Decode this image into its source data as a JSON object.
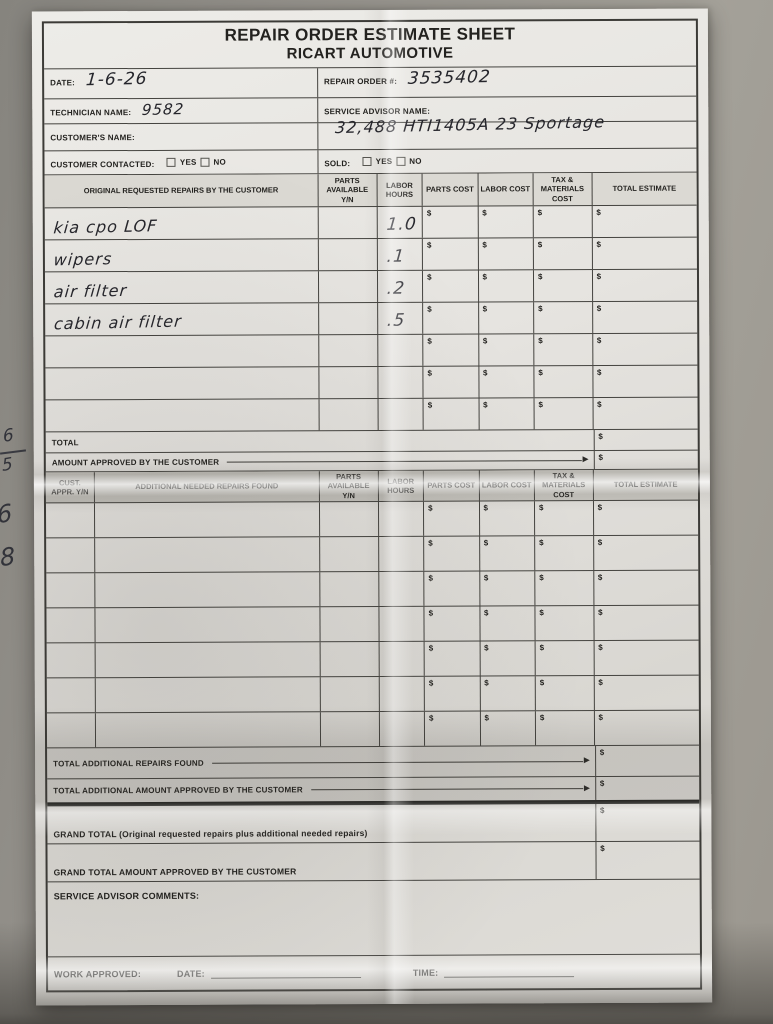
{
  "misc": {
    "dollar": "$"
  },
  "icons": {
    "arrow_right": "►"
  },
  "header": {
    "title_line1": "REPAIR ORDER ESTIMATE SHEET",
    "title_line2": "RICART AUTOMOTIVE"
  },
  "info": {
    "date_label": "DATE:",
    "date_value": "1-6-26",
    "repair_order_label": "REPAIR ORDER #:",
    "repair_order_value": "3535402",
    "technician_label": "TECHNICIAN NAME:",
    "technician_value": "9582",
    "service_advisor_label": "SERVICE ADVISOR NAME:",
    "customer_name_label": "CUSTOMER'S NAME:",
    "customer_note_value": "32,488  HTI1405A    23 Sportage",
    "customer_contacted_label": "CUSTOMER CONTACTED:",
    "sold_label": "SOLD:",
    "yes_label": "YES",
    "no_label": "NO"
  },
  "table1": {
    "headers": [
      "ORIGINAL REQUESTED REPAIRS BY THE CUSTOMER",
      "PARTS AVAILABLE Y/N",
      "LABOR HOURS",
      "PARTS COST",
      "LABOR COST",
      "TAX & MATERIALS COST",
      "TOTAL ESTIMATE"
    ],
    "rows": [
      {
        "repair": "kia cpo LOF",
        "labor_hours": "1.0"
      },
      {
        "repair": "wipers",
        "labor_hours": ".1"
      },
      {
        "repair": "air filter",
        "labor_hours": ".2"
      },
      {
        "repair": "cabin air filter",
        "labor_hours": ".5"
      },
      {
        "repair": "",
        "labor_hours": ""
      },
      {
        "repair": "",
        "labor_hours": ""
      },
      {
        "repair": "",
        "labor_hours": ""
      }
    ],
    "total_label": "TOTAL",
    "amount_approved_label": "AMOUNT APPROVED BY THE CUSTOMER"
  },
  "table2": {
    "headers": [
      "CUST. APPR. Y/N",
      "ADDITIONAL NEEDED REPAIRS FOUND",
      "PARTS AVAILABLE Y/N",
      "LABOR HOURS",
      "PARTS COST",
      "LABOR COST",
      "TAX & MATERIALS COST",
      "TOTAL ESTIMATE"
    ],
    "row_count": 7,
    "total_additional_label": "TOTAL ADDITIONAL REPAIRS FOUND",
    "total_additional_approved_label": "TOTAL ADDITIONAL AMOUNT APPROVED BY THE CUSTOMER"
  },
  "footer": {
    "grand_total_label": "GRAND TOTAL (Original requested repairs plus additional needed repairs)",
    "grand_total_approved_label": "GRAND TOTAL AMOUNT APPROVED BY THE CUSTOMER",
    "comments_label": "SERVICE ADVISOR COMMENTS:",
    "work_approved_label": "WORK APPROVED:",
    "date_label": "DATE:",
    "time_label": "TIME:"
  },
  "margin_notes": [
    "6",
    "5",
    "6",
    "8"
  ]
}
